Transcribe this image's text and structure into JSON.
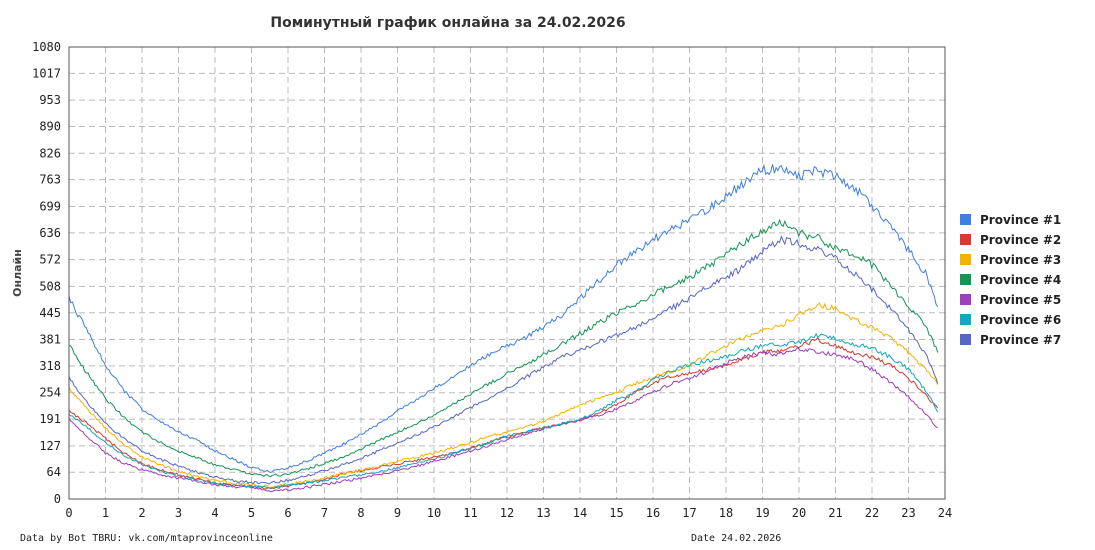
{
  "chart_data": {
    "type": "line",
    "title": "Поминутный график онлайна за 24.02.2026",
    "ylabel": "Онлайн",
    "xlabel": "",
    "x_ticks": [
      "0",
      "1",
      "2",
      "3",
      "4",
      "5",
      "6",
      "7",
      "8",
      "9",
      "10",
      "11",
      "12",
      "13",
      "14",
      "15",
      "16",
      "17",
      "18",
      "19",
      "20",
      "21",
      "22",
      "23",
      "24"
    ],
    "y_ticks": [
      "0",
      "64",
      "127",
      "191",
      "254",
      "318",
      "381",
      "445",
      "508",
      "572",
      "636",
      "699",
      "763",
      "826",
      "890",
      "953",
      "1017",
      "1080"
    ],
    "xlim": [
      0,
      24
    ],
    "ylim": [
      0,
      1080
    ],
    "grid": true,
    "legend_position": "right",
    "x": [
      0,
      0.5,
      1,
      1.5,
      2,
      2.5,
      3,
      3.5,
      4,
      4.5,
      5,
      5.5,
      6,
      6.5,
      7,
      7.5,
      8,
      8.5,
      9,
      9.5,
      10,
      10.5,
      11,
      11.5,
      12,
      12.5,
      13,
      13.5,
      14,
      14.5,
      15,
      15.5,
      16,
      16.5,
      17,
      17.5,
      18,
      18.5,
      19,
      19.5,
      20,
      20.5,
      21,
      21.5,
      22,
      22.5,
      23,
      23.5,
      23.8
    ],
    "series": [
      {
        "name": "Province #1",
        "color": "#3f7fe0",
        "values": [
          480,
          400,
          320,
          260,
          215,
          185,
          160,
          140,
          115,
          95,
          75,
          65,
          75,
          90,
          110,
          130,
          155,
          180,
          210,
          235,
          265,
          290,
          320,
          345,
          365,
          385,
          410,
          440,
          480,
          520,
          560,
          590,
          620,
          645,
          665,
          690,
          725,
          755,
          785,
          790,
          770,
          785,
          770,
          745,
          700,
          650,
          595,
          535,
          460
        ]
      },
      {
        "name": "Province #2",
        "color": "#d63a30",
        "values": [
          210,
          180,
          145,
          110,
          85,
          70,
          58,
          48,
          38,
          32,
          30,
          25,
          30,
          38,
          48,
          60,
          68,
          76,
          84,
          92,
          100,
          110,
          122,
          135,
          148,
          160,
          170,
          180,
          188,
          205,
          225,
          255,
          275,
          295,
          300,
          310,
          320,
          335,
          350,
          355,
          365,
          380,
          365,
          350,
          340,
          320,
          290,
          245,
          215
        ]
      },
      {
        "name": "Province #3",
        "color": "#f2b400",
        "values": [
          265,
          215,
          170,
          130,
          100,
          82,
          66,
          54,
          44,
          38,
          35,
          30,
          35,
          42,
          50,
          60,
          68,
          78,
          90,
          100,
          110,
          122,
          135,
          150,
          160,
          172,
          185,
          205,
          225,
          240,
          255,
          275,
          290,
          305,
          318,
          345,
          365,
          385,
          405,
          415,
          440,
          465,
          455,
          430,
          410,
          385,
          350,
          305,
          275
        ]
      },
      {
        "name": "Province #4",
        "color": "#159455",
        "values": [
          370,
          300,
          240,
          195,
          160,
          135,
          115,
          98,
          82,
          70,
          60,
          55,
          60,
          72,
          85,
          100,
          120,
          140,
          160,
          180,
          200,
          225,
          250,
          275,
          300,
          320,
          345,
          370,
          395,
          420,
          445,
          465,
          490,
          510,
          530,
          555,
          585,
          615,
          640,
          660,
          635,
          625,
          600,
          585,
          560,
          510,
          460,
          410,
          350
        ]
      },
      {
        "name": "Province #5",
        "color": "#9d3ebd",
        "values": [
          190,
          150,
          110,
          85,
          70,
          58,
          50,
          42,
          34,
          29,
          28,
          18,
          22,
          28,
          35,
          42,
          50,
          58,
          68,
          78,
          90,
          102,
          115,
          128,
          142,
          155,
          168,
          180,
          190,
          200,
          215,
          235,
          255,
          275,
          290,
          305,
          325,
          340,
          350,
          345,
          360,
          350,
          345,
          335,
          310,
          280,
          245,
          200,
          170
        ]
      },
      {
        "name": "Province #6",
        "color": "#14a7bf",
        "values": [
          205,
          170,
          135,
          105,
          82,
          66,
          56,
          46,
          38,
          32,
          30,
          28,
          32,
          38,
          45,
          52,
          58,
          65,
          75,
          85,
          95,
          108,
          120,
          135,
          150,
          160,
          170,
          180,
          190,
          210,
          235,
          255,
          285,
          305,
          320,
          330,
          340,
          355,
          365,
          370,
          375,
          390,
          385,
          370,
          360,
          340,
          310,
          255,
          210
        ]
      },
      {
        "name": "Province #7",
        "color": "#5766c6",
        "values": [
          290,
          230,
          180,
          145,
          115,
          95,
          78,
          64,
          52,
          44,
          40,
          38,
          45,
          55,
          68,
          82,
          98,
          115,
          135,
          152,
          172,
          195,
          218,
          240,
          265,
          290,
          315,
          340,
          355,
          375,
          390,
          410,
          430,
          455,
          480,
          505,
          530,
          555,
          590,
          620,
          610,
          595,
          575,
          540,
          500,
          455,
          405,
          340,
          280
        ]
      }
    ]
  },
  "footer": {
    "source": "Data by Bot TBRU: vk.com/mtaprovinceonline",
    "date": "Date 24.02.2026"
  }
}
